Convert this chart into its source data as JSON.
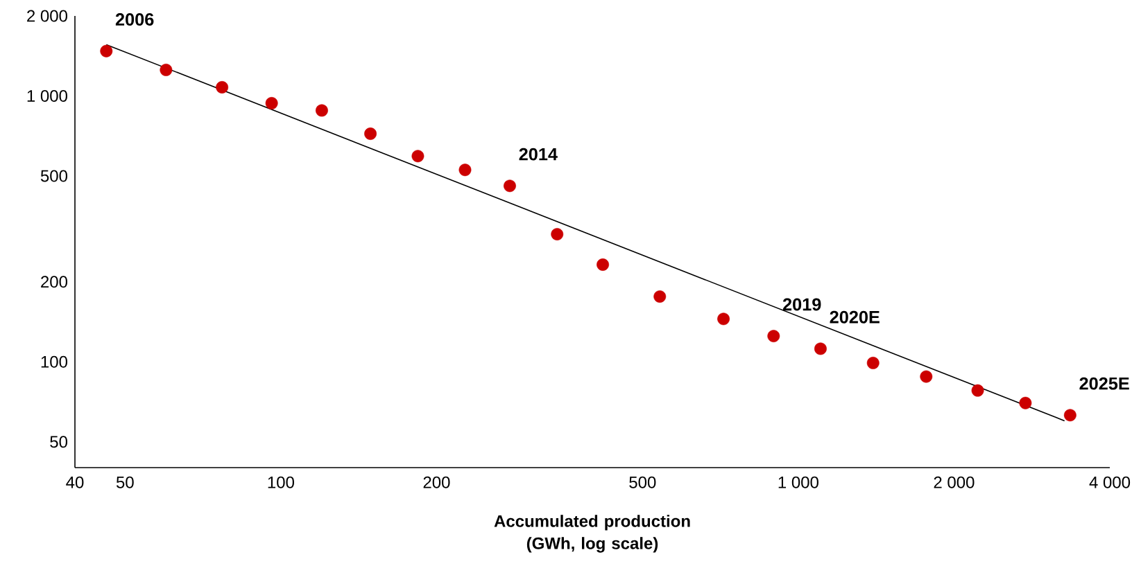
{
  "chart_data": {
    "type": "scatter",
    "log": "xy",
    "marker": "circle",
    "xlabel": "Accumulated production (GWh, log scale)",
    "xlim": [
      40,
      4000
    ],
    "ylim": [
      40,
      2000
    ],
    "xticks": [
      40,
      50,
      100,
      200,
      500,
      {
        "value": 1000,
        "label": "1 000"
      },
      {
        "value": 2000,
        "label": "2 000"
      },
      {
        "value": 4000,
        "label": "4 000"
      }
    ],
    "yticks": [
      50,
      100,
      200,
      500,
      {
        "value": 1000,
        "label": "1 000"
      },
      {
        "value": 2000,
        "label": "2 000"
      }
    ],
    "series": [
      {
        "color": "#cc0000",
        "x": [
          46,
          60,
          77,
          96,
          120,
          149,
          184,
          227,
          277,
          342,
          419,
          540,
          717,
          896,
          1104,
          1395,
          1767,
          2222,
          2748,
          3353
        ],
        "values": [
          1475,
          1253,
          1078,
          939,
          882,
          721,
          594,
          527,
          459,
          302,
          232,
          176,
          145,
          125,
          112,
          99,
          88,
          78,
          70,
          63
        ]
      },
      {
        "type": "line",
        "color": "#000000",
        "marker": "none",
        "x": [
          46,
          3270
        ],
        "values": [
          1560,
          60
        ]
      }
    ],
    "annotations": [
      {
        "text": "2006",
        "x": 46,
        "y": 1475
      },
      {
        "text": "2014",
        "x": 277,
        "y": 459
      },
      {
        "text": "2019",
        "x": 896,
        "y": 125
      },
      {
        "text": "2020E",
        "x": 1104,
        "y": 112
      },
      {
        "text": "2025E",
        "x": 3353,
        "y": 63
      }
    ]
  }
}
